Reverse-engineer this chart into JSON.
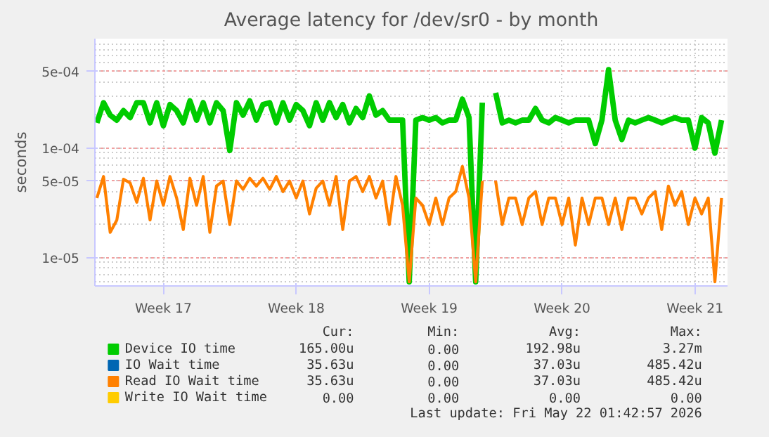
{
  "chart_data": {
    "type": "line",
    "title": "Average latency for /dev/sr0 - by month",
    "ylabel": "seconds",
    "log": "y",
    "grid": true,
    "legend": "bottom",
    "categories": [
      null,
      null,
      null,
      null,
      null,
      null,
      null,
      null,
      null,
      null,
      "Week 17",
      null,
      null,
      null,
      null,
      null,
      null,
      null,
      null,
      null,
      null,
      null,
      null,
      null,
      null,
      null,
      null,
      null,
      null,
      null,
      "Week 18",
      null,
      null,
      null,
      null,
      null,
      null,
      null,
      null,
      null,
      null,
      null,
      null,
      null,
      null,
      null,
      null,
      null,
      null,
      null,
      "Week 19",
      null,
      null,
      null,
      null,
      null,
      null,
      null,
      null,
      null,
      null,
      null,
      null,
      null,
      null,
      null,
      null,
      null,
      null,
      null,
      "Week 20",
      null,
      null,
      null,
      null,
      null,
      null,
      null,
      null,
      null,
      null,
      null,
      null,
      null,
      null,
      null,
      null,
      null,
      null,
      null,
      "Week 21",
      null,
      null,
      null,
      null
    ],
    "ylim": [
      5.5e-06,
      0.001
    ],
    "yticks": [
      {
        "value": 1e-05,
        "label": "1e-05"
      },
      {
        "value": 5e-05,
        "label": "5e-05"
      },
      {
        "value": 0.0001,
        "label": "1e-04"
      },
      {
        "value": 0.0005,
        "label": "5e-04"
      }
    ],
    "series": [
      {
        "name": "Device IO time",
        "color": "#00cc00",
        "values": [
          0.00017,
          0.00026,
          0.0002,
          0.00018,
          0.00022,
          0.00019,
          0.00026,
          0.00026,
          0.00017,
          0.00026,
          0.00016,
          0.00025,
          0.00022,
          0.00017,
          0.00027,
          0.00018,
          0.00026,
          0.00017,
          0.00026,
          0.00022,
          9.5e-05,
          0.00026,
          0.0002,
          0.00027,
          0.00018,
          0.00025,
          0.00026,
          0.00017,
          0.00026,
          0.00018,
          0.00025,
          0.00022,
          0.00016,
          0.00026,
          0.00018,
          0.00026,
          0.00019,
          0.00025,
          0.00017,
          0.00023,
          0.00019,
          0.0003,
          0.0002,
          0.00022,
          0.00018,
          0.00018,
          0.00018,
          6e-06,
          0.00018,
          0.00019,
          0.00018,
          0.00019,
          0.00017,
          0.00018,
          0.00018,
          0.00028,
          0.00019,
          6e-06,
          0.00026,
          null,
          0.00032,
          0.00017,
          0.00018,
          0.00017,
          0.00018,
          0.00018,
          0.00023,
          0.00018,
          0.00017,
          0.00019,
          0.00018,
          0.00017,
          0.00018,
          0.00018,
          0.00018,
          0.00011,
          0.00018,
          0.00052,
          0.00018,
          0.00012,
          0.00018,
          0.00017,
          0.00018,
          0.00019,
          0.00018,
          0.00017,
          0.00018,
          0.00019,
          0.00018,
          0.00018,
          0.0001,
          0.00019,
          0.00017,
          9e-05,
          0.00018
        ]
      },
      {
        "name": "IO Wait time",
        "color": "#0066b3",
        "values": [
          null,
          null,
          null,
          null,
          null,
          null,
          null,
          null,
          null,
          null,
          null,
          null,
          null,
          null,
          null,
          null,
          null,
          null,
          null,
          null,
          null,
          null,
          null,
          null,
          null,
          null,
          null,
          null,
          null,
          null,
          null,
          null,
          null,
          null,
          null,
          null,
          null,
          null,
          null,
          null,
          null,
          null,
          null,
          null,
          null,
          null,
          null,
          null,
          null,
          null,
          null,
          null,
          null,
          null,
          null,
          null,
          null,
          null,
          null,
          null,
          null,
          null,
          null,
          null,
          null,
          null,
          null,
          null,
          null,
          null,
          null,
          null,
          null,
          null,
          null,
          null,
          null,
          null,
          null,
          null,
          null,
          null,
          null,
          null,
          null,
          null,
          null,
          null,
          null,
          null,
          null,
          null,
          null,
          null,
          null
        ]
      },
      {
        "name": "Read IO Wait time",
        "color": "#ff8000",
        "values": [
          3.5e-05,
          5.5e-05,
          1.7e-05,
          2.2e-05,
          5.2e-05,
          4.8e-05,
          3.2e-05,
          5.3e-05,
          2.2e-05,
          5e-05,
          3e-05,
          5.5e-05,
          3.5e-05,
          1.8e-05,
          5.3e-05,
          3e-05,
          5.5e-05,
          1.7e-05,
          4.5e-05,
          5e-05,
          2e-05,
          5e-05,
          4.2e-05,
          5.3e-05,
          4.5e-05,
          5.3e-05,
          4.2e-05,
          5.5e-05,
          4e-05,
          5e-05,
          3.5e-05,
          5e-05,
          2.5e-05,
          4.3e-05,
          5e-05,
          3e-05,
          5.5e-05,
          1.8e-05,
          5e-05,
          5.5e-05,
          4e-05,
          5.5e-05,
          3.5e-05,
          5e-05,
          2e-05,
          5.5e-05,
          3e-05,
          6e-06,
          3.5e-05,
          3e-05,
          2e-05,
          3.5e-05,
          2e-05,
          3.5e-05,
          4e-05,
          6.8e-05,
          3.5e-05,
          6e-06,
          5e-05,
          null,
          5e-05,
          2e-05,
          3.5e-05,
          3.5e-05,
          2e-05,
          3.5e-05,
          4e-05,
          2e-05,
          3.5e-05,
          3.5e-05,
          2e-05,
          3.5e-05,
          1.3e-05,
          3.5e-05,
          2e-05,
          3.5e-05,
          3.5e-05,
          2e-05,
          3.5e-05,
          1.8e-05,
          3.5e-05,
          3.5e-05,
          2.5e-05,
          3.5e-05,
          4e-05,
          1.8e-05,
          4.5e-05,
          3e-05,
          4e-05,
          2e-05,
          3.5e-05,
          2.5e-05,
          3.5e-05,
          6e-06,
          3.5e-05
        ]
      },
      {
        "name": "Write IO Wait time",
        "color": "#ffcc00",
        "values": [
          null,
          null,
          null,
          null,
          null,
          null,
          null,
          null,
          null,
          null,
          null,
          null,
          null,
          null,
          null,
          null,
          null,
          null,
          null,
          null,
          null,
          null,
          null,
          null,
          null,
          null,
          null,
          null,
          null,
          null,
          null,
          null,
          null,
          null,
          null,
          null,
          null,
          null,
          null,
          null,
          null,
          null,
          null,
          null,
          null,
          null,
          null,
          null,
          null,
          null,
          null,
          null,
          null,
          null,
          null,
          null,
          null,
          null,
          null,
          null,
          null,
          null,
          null,
          null,
          null,
          null,
          null,
          null,
          null,
          null,
          null,
          null,
          null,
          null,
          null,
          null,
          null,
          null,
          null,
          null,
          null,
          null,
          null,
          null,
          null,
          null,
          null,
          null,
          null,
          null,
          null,
          null,
          null,
          null,
          null
        ]
      }
    ],
    "annotations": [
      "Cur:",
      "Min:",
      "Avg:",
      "Max:",
      "165.00u",
      "0.00",
      "192.98u",
      "3.27m",
      "35.63u",
      "0.00",
      "37.03u",
      "485.42u",
      "35.63u",
      "0.00",
      "37.03u",
      "485.42u",
      "0.00",
      "0.00",
      "0.00",
      "0.00",
      "Last update: Fri May 22 01:42:57 2026"
    ]
  }
}
